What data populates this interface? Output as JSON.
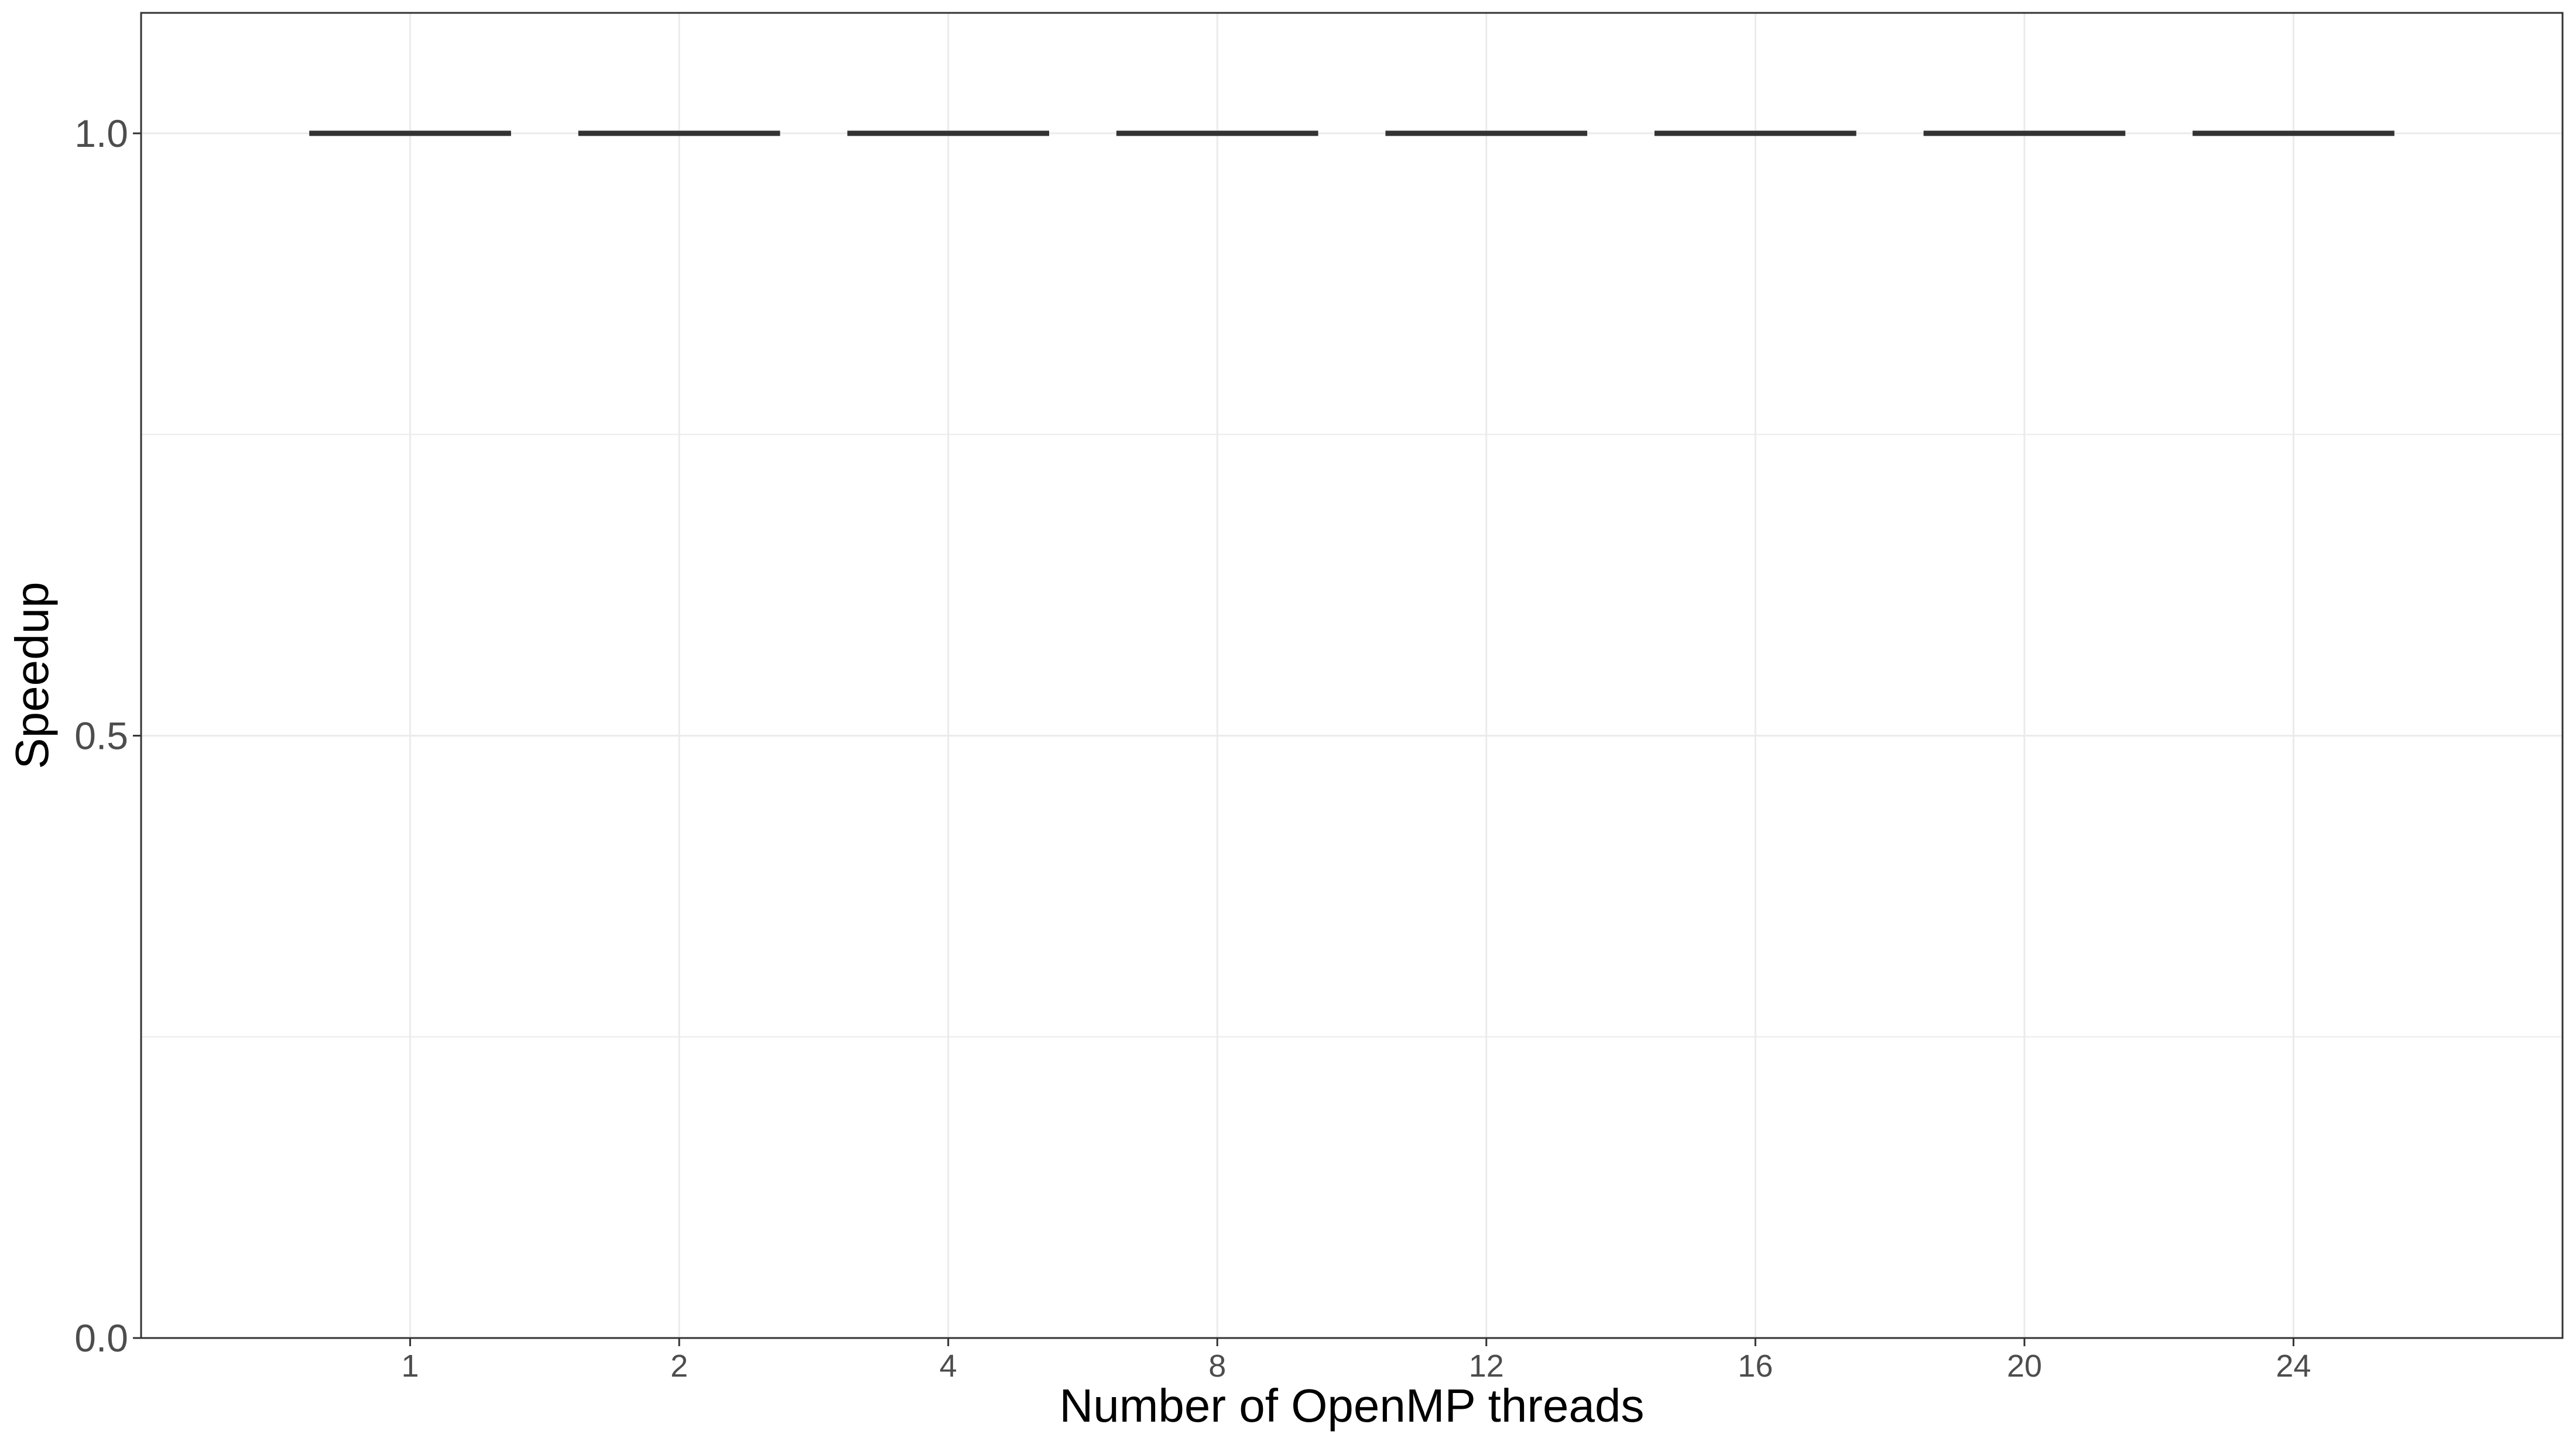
{
  "chart_data": {
    "type": "box",
    "xlabel": "Number of OpenMP threads",
    "ylabel": "Speedup",
    "categories": [
      "1",
      "2",
      "4",
      "8",
      "12",
      "16",
      "20",
      "24"
    ],
    "values": [
      1.0,
      1.0,
      1.0,
      1.0,
      1.0,
      1.0,
      1.0,
      1.0
    ],
    "ylim": [
      0.0,
      1.1
    ],
    "yticks": [
      0.0,
      0.5,
      1.0
    ],
    "ytick_labels": [
      "0.0",
      "0.5",
      "1.0"
    ],
    "grid": true,
    "legend": "none",
    "colors": {
      "mark": "#333333",
      "grid": "#ebebeb",
      "panel_border": "#333333",
      "tick_label": "#4d4d4d"
    }
  }
}
